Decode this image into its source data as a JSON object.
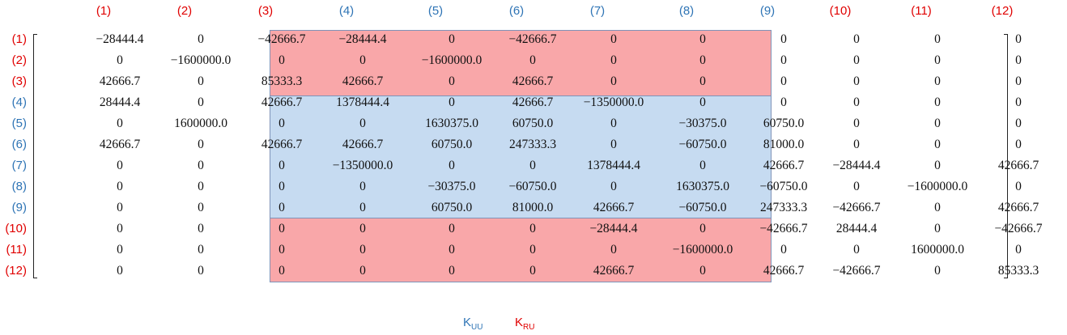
{
  "colors": {
    "label_red": "#e00000",
    "label_blue": "#2e74b5",
    "highlight_red": "#f9a7a9",
    "highlight_blue": "#c6dbf1"
  },
  "column_labels": [
    "(1)",
    "(2)",
    "(3)",
    "(4)",
    "(5)",
    "(6)",
    "(7)",
    "(8)",
    "(9)",
    "(10)",
    "(11)",
    "(12)"
  ],
  "row_labels": [
    "(1)",
    "(2)",
    "(3)",
    "(4)",
    "(5)",
    "(6)",
    "(7)",
    "(8)",
    "(9)",
    "(10)",
    "(11)",
    "(12)"
  ],
  "label_color_keys": [
    "red",
    "red",
    "red",
    "blue",
    "blue",
    "blue",
    "blue",
    "blue",
    "blue",
    "red",
    "red",
    "red"
  ],
  "matrix": [
    [
      "−28444.4",
      "0",
      "−42666.7",
      "−28444.4",
      "0",
      "−42666.7",
      "0",
      "0",
      "0",
      "0",
      "0",
      "0"
    ],
    [
      "0",
      "−1600000.0",
      "0",
      "0",
      "−1600000.0",
      "0",
      "0",
      "0",
      "0",
      "0",
      "0",
      "0"
    ],
    [
      "42666.7",
      "0",
      "85333.3",
      "42666.7",
      "0",
      "42666.7",
      "0",
      "0",
      "0",
      "0",
      "0",
      "0"
    ],
    [
      "28444.4",
      "0",
      "42666.7",
      "1378444.4",
      "0",
      "42666.7",
      "−1350000.0",
      "0",
      "0",
      "0",
      "0",
      "0"
    ],
    [
      "0",
      "1600000.0",
      "0",
      "0",
      "1630375.0",
      "60750.0",
      "0",
      "−30375.0",
      "60750.0",
      "0",
      "0",
      "0"
    ],
    [
      "42666.7",
      "0",
      "42666.7",
      "42666.7",
      "60750.0",
      "247333.3",
      "0",
      "−60750.0",
      "81000.0",
      "0",
      "0",
      "0"
    ],
    [
      "0",
      "0",
      "0",
      "−1350000.0",
      "0",
      "0",
      "1378444.4",
      "0",
      "42666.7",
      "−28444.4",
      "0",
      "42666.7"
    ],
    [
      "0",
      "0",
      "0",
      "0",
      "−30375.0",
      "−60750.0",
      "0",
      "1630375.0",
      "−60750.0",
      "0",
      "−1600000.0",
      "0"
    ],
    [
      "0",
      "0",
      "0",
      "0",
      "60750.0",
      "81000.0",
      "42666.7",
      "−60750.0",
      "247333.3",
      "−42666.7",
      "0",
      "42666.7"
    ],
    [
      "0",
      "0",
      "0",
      "0",
      "0",
      "0",
      "−28444.4",
      "0",
      "−42666.7",
      "28444.4",
      "0",
      "−42666.7"
    ],
    [
      "0",
      "0",
      "0",
      "0",
      "0",
      "0",
      "0",
      "−1600000.0",
      "0",
      "0",
      "1600000.0",
      "0"
    ],
    [
      "0",
      "0",
      "0",
      "0",
      "0",
      "0",
      "42666.7",
      "0",
      "42666.7",
      "−42666.7",
      "0",
      "85333.3"
    ]
  ],
  "legend": {
    "kuu_main": "K",
    "kuu_sub": "UU",
    "kru_main": "K",
    "kru_sub": "RU"
  }
}
